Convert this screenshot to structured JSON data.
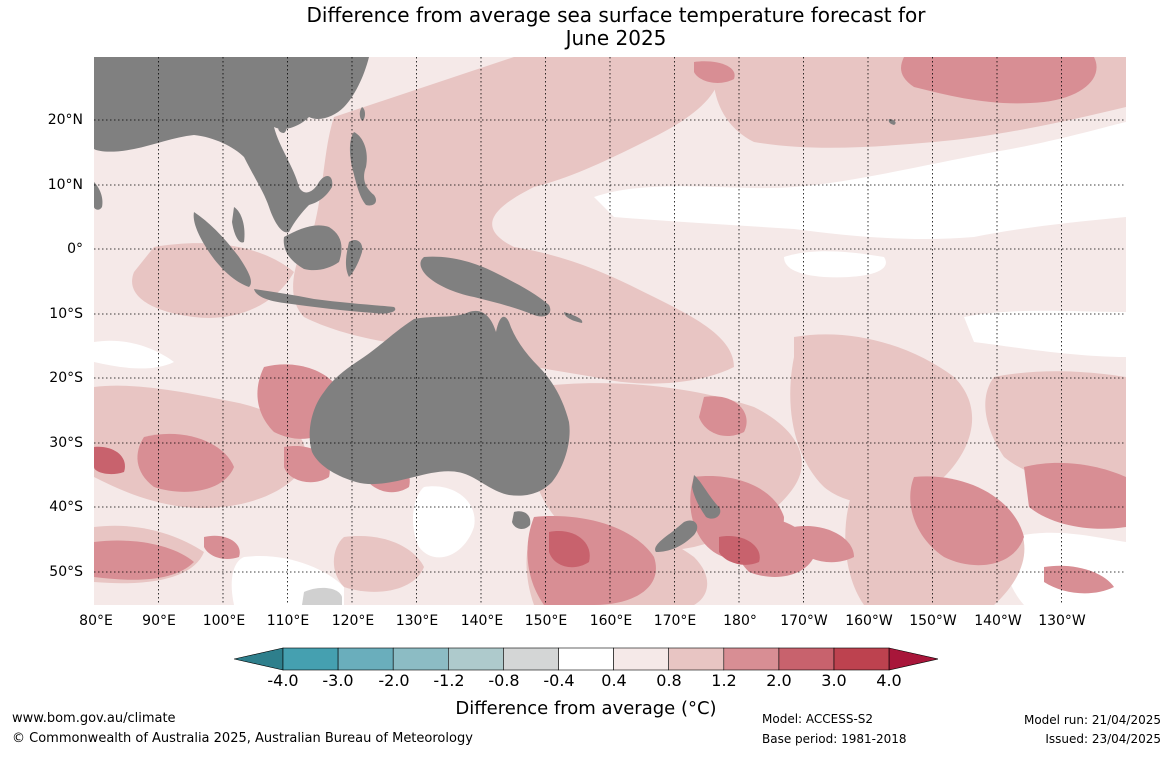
{
  "title": {
    "line1": "Difference from average sea surface temperature forecast for",
    "line2": "June 2025"
  },
  "map": {
    "longitude_labels": [
      "80°E",
      "90°E",
      "100°E",
      "110°E",
      "120°E",
      "130°E",
      "140°E",
      "150°E",
      "160°E",
      "170°E",
      "180°",
      "170°W",
      "160°W",
      "150°W",
      "140°W",
      "130°W"
    ],
    "latitude_labels": [
      "20°N",
      "10°N",
      "0°",
      "10°S",
      "20°S",
      "30°S",
      "40°S",
      "50°S"
    ],
    "land_color": "#808080",
    "ice_color": "#d0d0d0",
    "gridlines": "dotted"
  },
  "colorbar": {
    "labels": [
      "-4.0",
      "-3.0",
      "-2.0",
      "-1.2",
      "-0.8",
      "-0.4",
      "0.4",
      "0.8",
      "1.2",
      "2.0",
      "3.0",
      "4.0"
    ],
    "colors": [
      "#2e7f8c",
      "#45a0b0",
      "#6aaebc",
      "#8cbcc4",
      "#aecacc",
      "#d4d6d6",
      "#ffffff",
      "#f5e9e8",
      "#e8c5c3",
      "#d88e94",
      "#c8626d",
      "#bd424f",
      "#a8163a"
    ],
    "title": "Difference from average (°C)"
  },
  "footer": {
    "website": "www.bom.gov.au/climate",
    "copyright": "© Commonwealth of Australia 2025, Australian Bureau of Meteorology",
    "model": "Model: ACCESS-S2",
    "base_period": "Base period: 1981-2018",
    "model_run": "Model run: 21/04/2025",
    "issued": "Issued: 23/04/2025"
  }
}
